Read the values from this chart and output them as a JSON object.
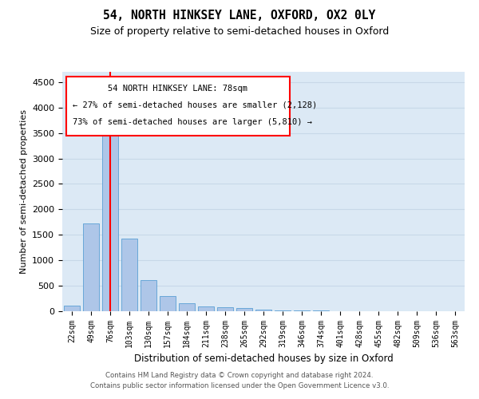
{
  "title": "54, NORTH HINKSEY LANE, OXFORD, OX2 0LY",
  "subtitle": "Size of property relative to semi-detached houses in Oxford",
  "xlabel": "Distribution of semi-detached houses by size in Oxford",
  "ylabel": "Number of semi-detached properties",
  "categories": [
    "22sqm",
    "49sqm",
    "76sqm",
    "103sqm",
    "130sqm",
    "157sqm",
    "184sqm",
    "211sqm",
    "238sqm",
    "265sqm",
    "292sqm",
    "319sqm",
    "346sqm",
    "374sqm",
    "401sqm",
    "428sqm",
    "455sqm",
    "482sqm",
    "509sqm",
    "536sqm",
    "563sqm"
  ],
  "values": [
    110,
    1720,
    3500,
    1430,
    610,
    290,
    155,
    95,
    80,
    55,
    30,
    18,
    10,
    8,
    6,
    5,
    4,
    3,
    2,
    2,
    1
  ],
  "bar_color": "#aec6e8",
  "bar_edge_color": "#5a9fd4",
  "grid_color": "#c8d8e8",
  "background_color": "#dce9f5",
  "property_label": "54 NORTH HINKSEY LANE: 78sqm",
  "pct_smaller": 27,
  "n_smaller": 2128,
  "pct_larger": 73,
  "n_larger": 5810,
  "vline_bin_index": 2,
  "ylim": [
    0,
    4700
  ],
  "yticks": [
    0,
    500,
    1000,
    1500,
    2000,
    2500,
    3000,
    3500,
    4000,
    4500
  ],
  "footer_line1": "Contains HM Land Registry data © Crown copyright and database right 2024.",
  "footer_line2": "Contains public sector information licensed under the Open Government Licence v3.0."
}
